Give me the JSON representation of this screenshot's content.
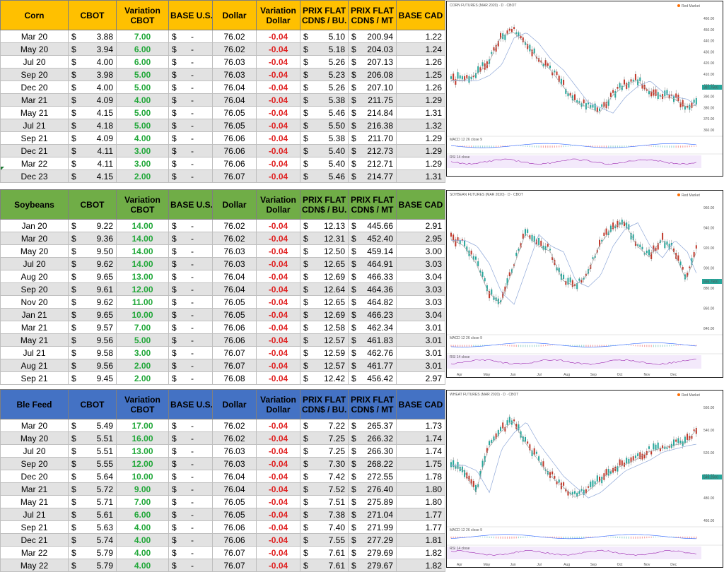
{
  "headers": [
    "CBOT",
    "Variation CBOT",
    "BASE U.S.",
    "Dollar",
    "Variation Dollar",
    "PRIX FLAT CDN$ / BU.",
    "PRIX FLAT CDN$ / MT",
    "BASE CAD"
  ],
  "header_lines": {
    "cbot": [
      "CBOT"
    ],
    "var_cbot": [
      "Variation",
      "CBOT"
    ],
    "base_us": [
      "BASE U.S."
    ],
    "dollar": [
      "Dollar"
    ],
    "var_dollar": [
      "Variation",
      "Dollar"
    ],
    "flat_bu": [
      "PRIX FLAT",
      "CDN$ / BU."
    ],
    "flat_mt": [
      "PRIX FLAT",
      "CDN$ / MT"
    ],
    "base_cad": [
      "BASE CAD"
    ]
  },
  "currency_symbol": "$",
  "dash": "-",
  "sections": [
    {
      "name": "Corn",
      "header_color": "#ffc000",
      "rows": [
        [
          "Mar 20",
          "3.88",
          "7.00",
          "76.02",
          "-0.04",
          "5.10",
          "200.94",
          "1.22"
        ],
        [
          "May 20",
          "3.94",
          "6.00",
          "76.02",
          "-0.04",
          "5.18",
          "204.03",
          "1.24"
        ],
        [
          "Jul 20",
          "4.00",
          "6.00",
          "76.03",
          "-0.04",
          "5.26",
          "207.13",
          "1.26"
        ],
        [
          "Sep 20",
          "3.98",
          "5.00",
          "76.03",
          "-0.04",
          "5.23",
          "206.08",
          "1.25"
        ],
        [
          "Dec 20",
          "4.00",
          "5.00",
          "76.04",
          "-0.04",
          "5.26",
          "207.10",
          "1.26"
        ],
        [
          "Mar 21",
          "4.09",
          "4.00",
          "76.04",
          "-0.04",
          "5.38",
          "211.75",
          "1.29"
        ],
        [
          "May 21",
          "4.15",
          "5.00",
          "76.05",
          "-0.04",
          "5.46",
          "214.84",
          "1.31"
        ],
        [
          "Jul 21",
          "4.18",
          "5.00",
          "76.05",
          "-0.04",
          "5.50",
          "216.38",
          "1.32"
        ],
        [
          "Sep 21",
          "4.09",
          "4.00",
          "76.06",
          "-0.04",
          "5.38",
          "211.70",
          "1.29"
        ],
        [
          "Dec 21",
          "4.11",
          "3.00",
          "76.06",
          "-0.04",
          "5.40",
          "212.73",
          "1.29"
        ],
        [
          "Mar 22",
          "4.11",
          "3.00",
          "76.06",
          "-0.04",
          "5.40",
          "212.71",
          "1.29"
        ],
        [
          "Dec 23",
          "4.15",
          "2.00",
          "76.07",
          "-0.04",
          "5.46",
          "214.77",
          "1.31"
        ]
      ],
      "chart": {
        "title": "CORN FUTURES (MAR 2020) · D · CBOT",
        "badge": "Red Market",
        "price_tag": "387.7500",
        "macd_label": "MACD 12 26 close 9",
        "rsi_label": "RSI 14 close",
        "y_ticks": [
          "460.00",
          "450.00",
          "440.00",
          "430.00",
          "420.00",
          "410.00",
          "400.00",
          "390.00",
          "380.00",
          "370.00",
          "360.00"
        ]
      }
    },
    {
      "name": "Soybeans",
      "header_color": "#70ad47",
      "rows": [
        [
          "Jan 20",
          "9.22",
          "14.00",
          "76.02",
          "-0.04",
          "12.13",
          "445.66",
          "2.91"
        ],
        [
          "Mar 20",
          "9.36",
          "14.00",
          "76.02",
          "-0.04",
          "12.31",
          "452.40",
          "2.95"
        ],
        [
          "May 20",
          "9.50",
          "14.00",
          "76.03",
          "-0.04",
          "12.50",
          "459.14",
          "3.00"
        ],
        [
          "Jul 20",
          "9.62",
          "14.00",
          "76.03",
          "-0.04",
          "12.65",
          "464.91",
          "3.03"
        ],
        [
          "Aug 20",
          "9.65",
          "13.00",
          "76.04",
          "-0.04",
          "12.69",
          "466.33",
          "3.04"
        ],
        [
          "Sep 20",
          "9.61",
          "12.00",
          "76.04",
          "-0.04",
          "12.64",
          "464.36",
          "3.03"
        ],
        [
          "Nov 20",
          "9.62",
          "11.00",
          "76.05",
          "-0.04",
          "12.65",
          "464.82",
          "3.03"
        ],
        [
          "Jan 21",
          "9.65",
          "10.00",
          "76.05",
          "-0.04",
          "12.69",
          "466.23",
          "3.04"
        ],
        [
          "Mar 21",
          "9.57",
          "7.00",
          "76.06",
          "-0.04",
          "12.58",
          "462.34",
          "3.01"
        ],
        [
          "May 21",
          "9.56",
          "5.00",
          "76.06",
          "-0.04",
          "12.57",
          "461.83",
          "3.01"
        ],
        [
          "Jul 21",
          "9.58",
          "3.00",
          "76.07",
          "-0.04",
          "12.59",
          "462.76",
          "3.01"
        ],
        [
          "Aug 21",
          "9.56",
          "2.00",
          "76.07",
          "-0.04",
          "12.57",
          "461.77",
          "3.01"
        ],
        [
          "Sep 21",
          "9.45",
          "2.00",
          "76.08",
          "-0.04",
          "12.42",
          "456.42",
          "2.97"
        ]
      ],
      "chart": {
        "title": "SOYBEAN FUTURES (MAR 2020) · D · CBOT",
        "badge": "Red Market",
        "price_tag": "936.7500",
        "macd_label": "MACD 12 26 close 9",
        "rsi_label": "RSI 14 close",
        "months": [
          "Apr",
          "May",
          "Jun",
          "Jul",
          "Aug",
          "Sep",
          "Oct",
          "Nov",
          "Dec"
        ],
        "y_ticks": [
          "960.00",
          "940.00",
          "920.00",
          "900.00",
          "880.00",
          "860.00",
          "840.00"
        ]
      }
    },
    {
      "name": "Ble Feed",
      "header_color": "#4472c4",
      "rows": [
        [
          "Mar 20",
          "5.49",
          "17.00",
          "76.02",
          "-0.04",
          "7.22",
          "265.37",
          "1.73"
        ],
        [
          "May 20",
          "5.51",
          "16.00",
          "76.02",
          "-0.04",
          "7.25",
          "266.32",
          "1.74"
        ],
        [
          "Jul 20",
          "5.51",
          "13.00",
          "76.03",
          "-0.04",
          "7.25",
          "266.30",
          "1.74"
        ],
        [
          "Sep 20",
          "5.55",
          "12.00",
          "76.03",
          "-0.04",
          "7.30",
          "268.22",
          "1.75"
        ],
        [
          "Dec 20",
          "5.64",
          "10.00",
          "76.04",
          "-0.04",
          "7.42",
          "272.55",
          "1.78"
        ],
        [
          "Mar 21",
          "5.72",
          "9.00",
          "76.04",
          "-0.04",
          "7.52",
          "276.40",
          "1.80"
        ],
        [
          "May 21",
          "5.71",
          "7.00",
          "76.05",
          "-0.04",
          "7.51",
          "275.89",
          "1.80"
        ],
        [
          "Jul 21",
          "5.61",
          "6.00",
          "76.05",
          "-0.04",
          "7.38",
          "271.04",
          "1.77"
        ],
        [
          "Sep 21",
          "5.63",
          "4.00",
          "76.06",
          "-0.04",
          "7.40",
          "271.99",
          "1.77"
        ],
        [
          "Dec 21",
          "5.74",
          "4.00",
          "76.06",
          "-0.04",
          "7.55",
          "277.29",
          "1.81"
        ],
        [
          "Mar 22",
          "5.79",
          "4.00",
          "76.07",
          "-0.04",
          "7.61",
          "279.69",
          "1.82"
        ],
        [
          "May 22",
          "5.79",
          "4.00",
          "76.07",
          "-0.04",
          "7.61",
          "279.67",
          "1.82"
        ]
      ],
      "chart": {
        "title": "WHEAT FUTURES (MAR 2020) · D · CBOT",
        "badge": "Red Market",
        "price_tag": "549.2500",
        "macd_label": "MACD 12 26 close 9",
        "rsi_label": "RSI 14 close",
        "months": [
          "Apr",
          "May",
          "Jun",
          "Jul",
          "Aug",
          "Sep",
          "Oct",
          "Nov",
          "Dec"
        ],
        "y_ticks": [
          "560.00",
          "540.00",
          "520.00",
          "500.00",
          "480.00",
          "460.00"
        ]
      }
    }
  ]
}
